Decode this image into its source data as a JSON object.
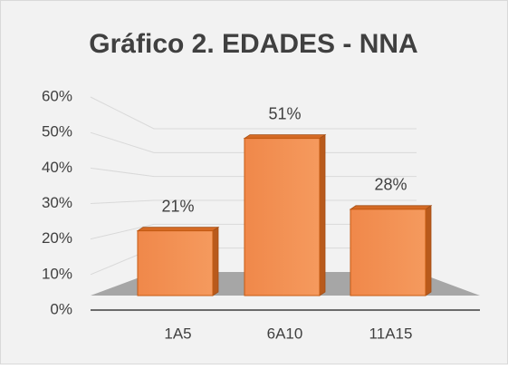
{
  "chart_data": {
    "type": "bar3d",
    "title": "Gráfico 2. EDADES - NNA",
    "categories": [
      "1A5",
      "6A10",
      "11A15"
    ],
    "values": [
      21,
      51,
      28
    ],
    "value_labels": [
      "21%",
      "51%",
      "28%"
    ],
    "color": "#ed7d31",
    "ylim": [
      0,
      60
    ],
    "yticks": [
      {
        "value": 0,
        "label": "0%"
      },
      {
        "value": 10,
        "label": "10%"
      },
      {
        "value": 20,
        "label": "20%"
      },
      {
        "value": 30,
        "label": "30%"
      },
      {
        "value": 40,
        "label": "40%"
      },
      {
        "value": 50,
        "label": "50%"
      },
      {
        "value": 60,
        "label": "60%"
      }
    ],
    "grid": true
  }
}
